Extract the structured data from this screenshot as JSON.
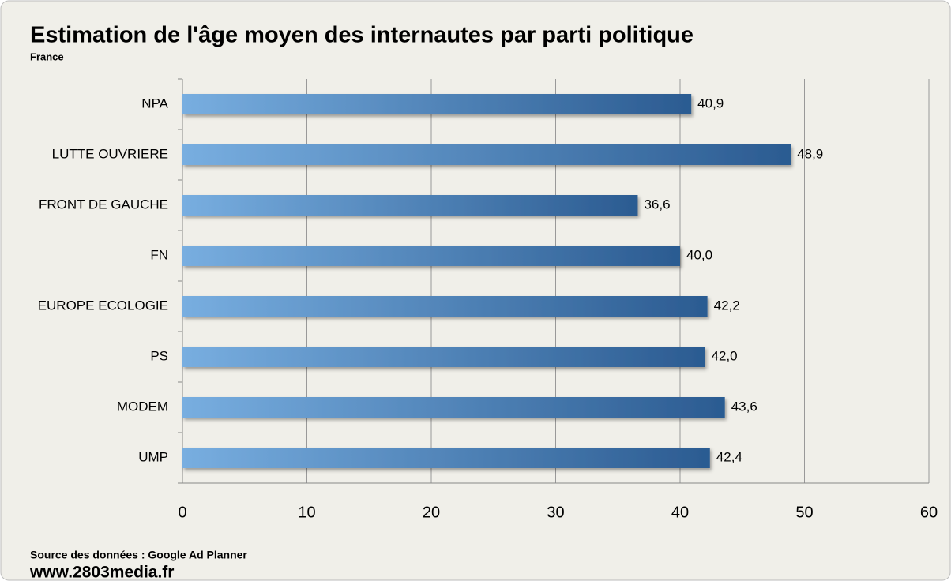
{
  "chart_data": {
    "type": "barh",
    "title": "Estimation de l'âge moyen des internautes par parti politique",
    "subtitle": "France",
    "categories": [
      "NPA",
      "LUTTE OUVRIERE",
      "FRONT DE GAUCHE",
      "FN",
      "EUROPE ECOLOGIE",
      "PS",
      "MODEM",
      "UMP"
    ],
    "values": [
      40.9,
      48.9,
      36.6,
      40.0,
      42.2,
      42.0,
      43.6,
      42.4
    ],
    "value_labels": [
      "40,9",
      "48,9",
      "36,6",
      "40,0",
      "42,2",
      "42,0",
      "43,6",
      "42,4"
    ],
    "gradient": [
      "#78aee0",
      "#2b5b91"
    ],
    "xlim": [
      0,
      60
    ],
    "xticks": [
      0,
      10,
      20,
      30,
      40,
      50,
      60
    ],
    "grid": true,
    "source": "Source des données : Google Ad Planner",
    "website": "www.2803media.fr"
  }
}
